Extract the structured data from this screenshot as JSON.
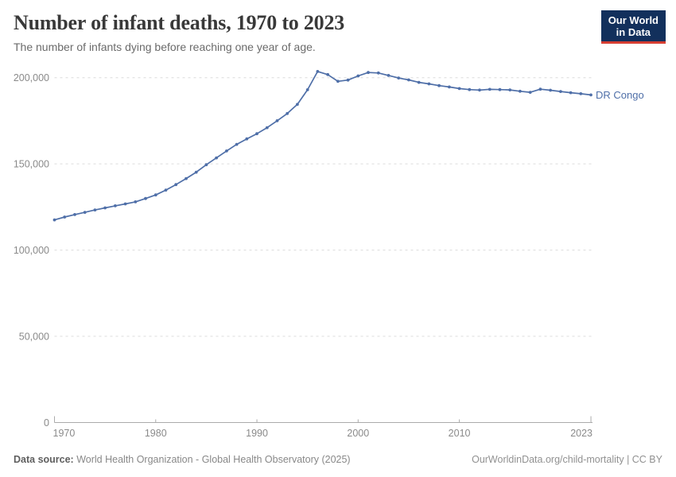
{
  "header": {
    "title": "Number of infant deaths, 1970 to 2023",
    "subtitle": "The number of infants dying before reaching one year of age."
  },
  "logo": {
    "line1": "Our World",
    "line2": "in Data",
    "bg_color": "#12305c",
    "accent_color": "#d63e32"
  },
  "footer": {
    "source_label": "Data source:",
    "source_text": "World Health Organization - Global Health Observatory (2025)",
    "link_text": "OurWorldinData.org/child-mortality | CC BY"
  },
  "chart_data": {
    "type": "line",
    "title": "Number of infant deaths, 1970 to 2023",
    "xlabel": "",
    "ylabel": "",
    "ylim": [
      0,
      215000
    ],
    "grid": "horizontal-dashed",
    "legend": "end-of-line-label",
    "line_color": "#4f6fa8",
    "x_ticks": [
      {
        "value": 1970,
        "label": "1970",
        "anchor": "start"
      },
      {
        "value": 1980,
        "label": "1980",
        "anchor": "middle"
      },
      {
        "value": 1990,
        "label": "1990",
        "anchor": "middle"
      },
      {
        "value": 2000,
        "label": "2000",
        "anchor": "middle"
      },
      {
        "value": 2010,
        "label": "2010",
        "anchor": "middle"
      },
      {
        "value": 2023,
        "label": "2023",
        "anchor": "end"
      }
    ],
    "y_ticks": [
      {
        "value": 0,
        "label": "0"
      },
      {
        "value": 50000,
        "label": "50,000"
      },
      {
        "value": 100000,
        "label": "100,000"
      },
      {
        "value": 150000,
        "label": "150,000"
      },
      {
        "value": 200000,
        "label": "200,000"
      }
    ],
    "series": [
      {
        "name": "DR Congo",
        "color": "#4f6fa8",
        "years": [
          1970,
          1971,
          1972,
          1973,
          1974,
          1975,
          1976,
          1977,
          1978,
          1979,
          1980,
          1981,
          1982,
          1983,
          1984,
          1985,
          1986,
          1987,
          1988,
          1989,
          1990,
          1991,
          1992,
          1993,
          1994,
          1995,
          1996,
          1997,
          1998,
          1999,
          2000,
          2001,
          2002,
          2003,
          2004,
          2005,
          2006,
          2007,
          2008,
          2009,
          2010,
          2011,
          2012,
          2013,
          2014,
          2015,
          2016,
          2017,
          2018,
          2019,
          2020,
          2021,
          2022,
          2023
        ],
        "values": [
          117500,
          119200,
          120600,
          121900,
          123300,
          124500,
          125700,
          126800,
          128000,
          129900,
          132000,
          134800,
          138000,
          141500,
          145200,
          149500,
          153500,
          157500,
          161300,
          164500,
          167500,
          171000,
          175000,
          179200,
          184500,
          193000,
          203600,
          201800,
          197900,
          198600,
          201000,
          203000,
          202700,
          201300,
          199800,
          198700,
          197300,
          196400,
          195400,
          194600,
          193700,
          193100,
          192800,
          193200,
          193100,
          192900,
          192100,
          191500,
          193300,
          192700,
          192000,
          191300,
          190700,
          190000
        ]
      }
    ]
  }
}
